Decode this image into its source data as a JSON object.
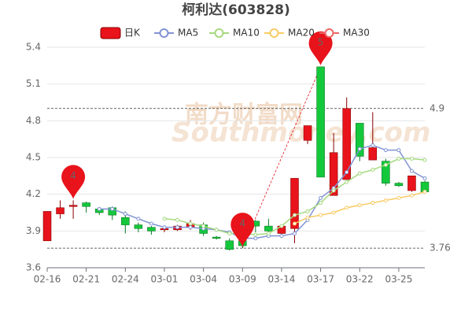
{
  "chart_data": {
    "type": "candlestick",
    "title": "柯利达(603828)",
    "watermark": [
      "南方财富网",
      "Southmoney.com"
    ],
    "categories": [
      "02-16",
      null,
      null,
      "02-21",
      null,
      null,
      "02-24",
      null,
      null,
      "03-01",
      null,
      null,
      "03-04",
      null,
      null,
      "03-09",
      null,
      null,
      "03-14",
      null,
      null,
      "03-17",
      null,
      null,
      "03-22",
      null,
      null,
      "03-25",
      null,
      null
    ],
    "candles": {
      "name": "日K",
      "up_color": "#e8131b",
      "down_color": "#14c83c",
      "open": [
        3.82,
        4.04,
        4.1,
        4.13,
        4.08,
        4.09,
        4.01,
        3.95,
        3.93,
        3.91,
        3.91,
        3.93,
        3.95,
        3.85,
        3.82,
        3.82,
        3.98,
        3.94,
        3.88,
        3.92,
        4.64,
        5.24,
        4.19,
        4.32,
        4.78,
        4.48,
        4.47,
        4.29,
        4.23,
        4.3
      ],
      "close": [
        4.06,
        4.09,
        4.11,
        4.1,
        4.05,
        4.03,
        3.95,
        3.92,
        3.9,
        3.92,
        3.94,
        3.96,
        3.88,
        3.84,
        3.75,
        3.78,
        3.94,
        3.9,
        3.94,
        4.33,
        4.76,
        4.34,
        4.54,
        4.9,
        4.51,
        4.58,
        4.29,
        4.27,
        4.35,
        4.22
      ],
      "low": [
        3.82,
        4.0,
        4.0,
        4.05,
        4.03,
        3.99,
        3.88,
        3.89,
        3.87,
        3.89,
        3.9,
        3.91,
        3.86,
        3.83,
        3.74,
        3.76,
        3.89,
        3.88,
        3.87,
        3.8,
        4.61,
        4.34,
        4.19,
        4.32,
        4.47,
        4.48,
        4.27,
        4.26,
        4.22,
        4.21
      ],
      "high": [
        4.06,
        4.15,
        4.15,
        4.14,
        4.09,
        4.1,
        4.06,
        3.97,
        3.94,
        3.92,
        3.95,
        3.99,
        3.97,
        3.86,
        3.84,
        3.86,
        3.99,
        4.0,
        3.95,
        4.33,
        4.76,
        5.24,
        4.7,
        4.99,
        4.78,
        4.87,
        4.49,
        4.3,
        4.35,
        4.31
      ]
    },
    "series": [
      {
        "name": "MA5",
        "color": "#8193d3",
        "values": [
          null,
          null,
          null,
          null,
          4.08,
          4.08,
          4.04,
          4.0,
          3.96,
          3.93,
          3.93,
          3.93,
          3.92,
          3.91,
          3.89,
          3.84,
          3.84,
          3.86,
          3.86,
          3.88,
          3.99,
          4.17,
          4.25,
          4.38,
          4.57,
          4.6,
          4.56,
          4.56,
          4.39,
          4.33
        ]
      },
      {
        "name": "MA10",
        "color": "#a5d97f",
        "values": [
          null,
          null,
          null,
          null,
          null,
          null,
          null,
          null,
          null,
          4.0,
          3.99,
          3.96,
          3.94,
          3.91,
          3.88,
          3.88,
          3.87,
          3.88,
          3.94,
          4.03,
          4.06,
          4.13,
          4.23,
          4.3,
          4.37,
          4.4,
          4.44,
          4.49,
          4.49,
          4.48
        ]
      },
      {
        "name": "MA20",
        "color": "#f9cb63",
        "values": [
          null,
          null,
          null,
          null,
          null,
          null,
          null,
          null,
          null,
          null,
          null,
          null,
          null,
          null,
          null,
          null,
          null,
          null,
          null,
          3.96,
          4.01,
          4.03,
          4.05,
          4.09,
          4.11,
          4.13,
          4.15,
          4.17,
          4.19,
          4.22
        ]
      },
      {
        "name": "MA30",
        "color": "#ee6666",
        "values": [
          null,
          null,
          null,
          null,
          null,
          null,
          null,
          null,
          null,
          null,
          null,
          null,
          null,
          null,
          null,
          null,
          null,
          null,
          null,
          null,
          null,
          null,
          null,
          null,
          null,
          null,
          null,
          null,
          null,
          null
        ]
      }
    ],
    "ylim": [
      3.6,
      5.4
    ],
    "yticks": [
      3.6,
      3.9,
      4.2,
      4.5,
      4.8,
      5.1,
      5.4
    ],
    "grid": true,
    "mark_lines": [
      4.9,
      3.76
    ],
    "markers": [
      {
        "label": "4",
        "index": 2,
        "value": 4.15
      },
      {
        "label": "4",
        "index": 15,
        "value": 3.76
      },
      {
        "label": "5",
        "index": 21,
        "value": 5.24
      }
    ],
    "marker_color": "#e8131b"
  }
}
